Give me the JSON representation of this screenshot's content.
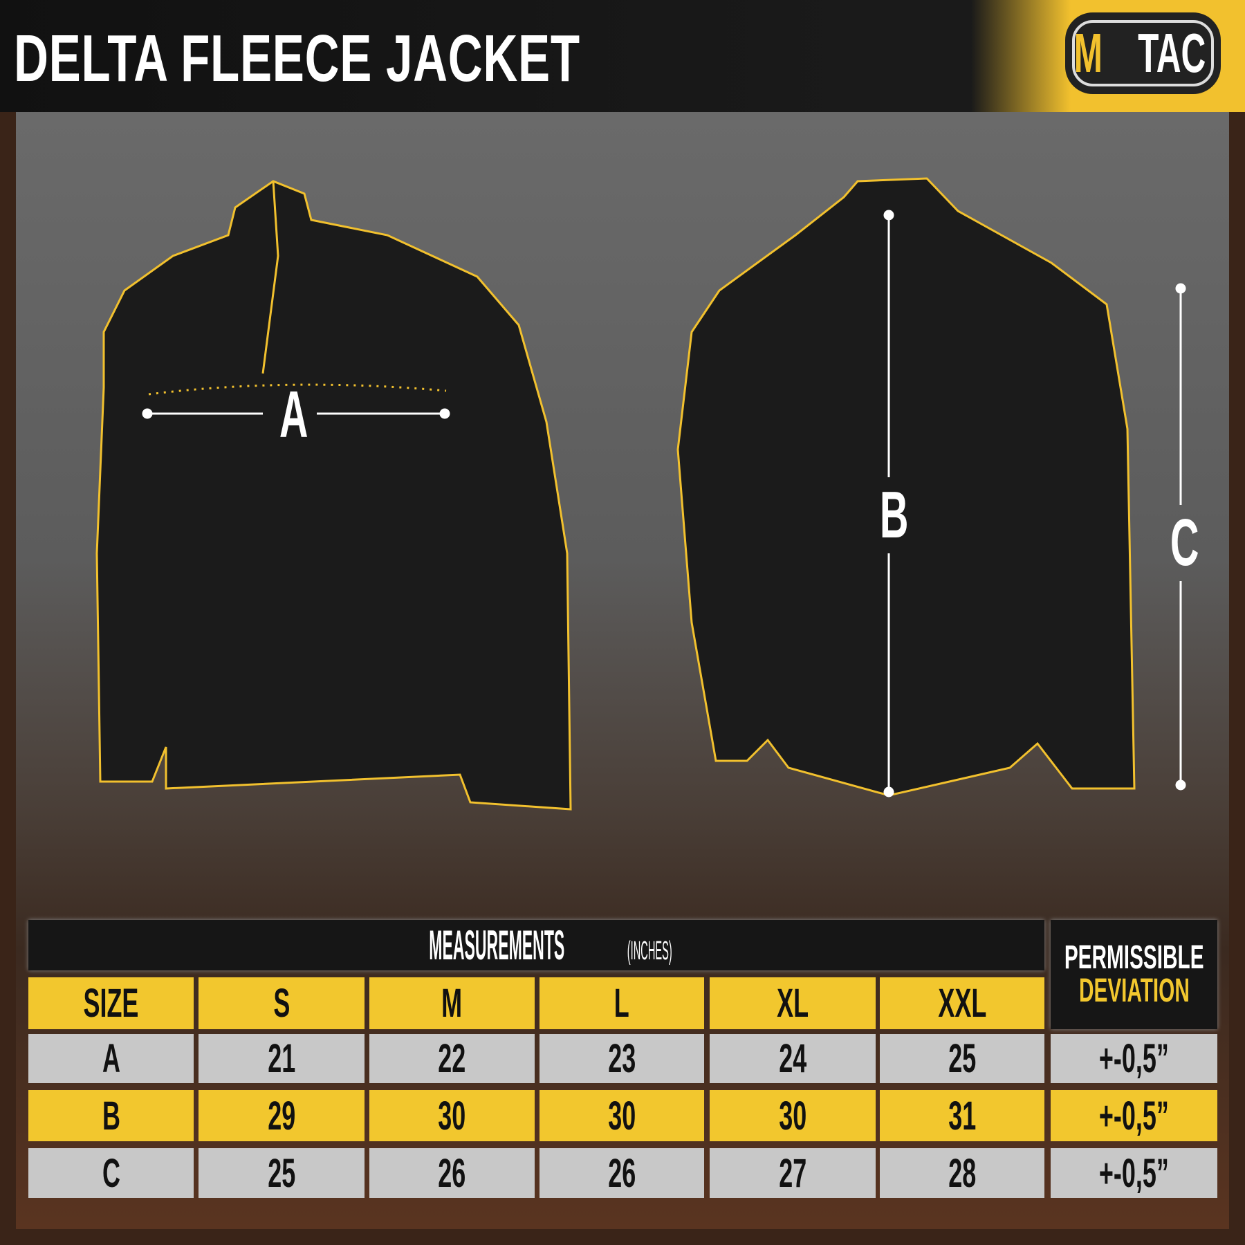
{
  "header": {
    "title": "DELTA FLEECE JACKET",
    "logo": "M·TAC"
  },
  "colors": {
    "accent": "#f2c72e",
    "dark": "#161616",
    "row_gray": "#c8c8c8"
  },
  "diagram": {
    "labels": {
      "a": "A",
      "b": "B",
      "c": "C"
    }
  },
  "table": {
    "title": "MEASUREMENTS",
    "unit": "(INCHES)",
    "deviation_header": [
      "PERMISSIBLE",
      "DEVIATION"
    ],
    "columns": [
      "SIZE",
      "S",
      "M",
      "L",
      "XL",
      "XXL"
    ],
    "rows": [
      {
        "label": "A",
        "values": [
          "21",
          "22",
          "23",
          "24",
          "25"
        ],
        "deviation": "+-0,5”"
      },
      {
        "label": "B",
        "values": [
          "29",
          "30",
          "30",
          "30",
          "31"
        ],
        "deviation": "+-0,5”"
      },
      {
        "label": "C",
        "values": [
          "25",
          "26",
          "26",
          "27",
          "28"
        ],
        "deviation": "+-0,5”"
      }
    ]
  }
}
